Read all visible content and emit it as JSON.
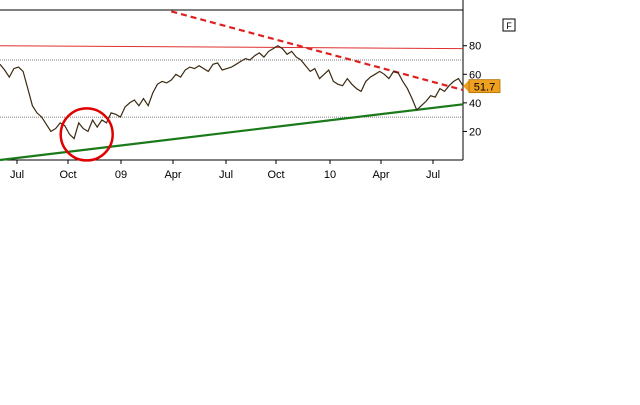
{
  "chart_data": {
    "type": "line",
    "title": "",
    "xlabel": "",
    "ylabel": "",
    "ylim": [
      0,
      105
    ],
    "grid": "dotted horizontal lines at 30 and 70",
    "x_tick_labels": [
      "Jul",
      "Oct",
      "09",
      "Apr",
      "Jul",
      "Oct",
      "10",
      "Apr",
      "Jul"
    ],
    "y_tick_labels": [
      "20",
      "40",
      "60",
      "80"
    ],
    "y_ticks": [
      20,
      40,
      60,
      80
    ],
    "overbought_level": 70,
    "oversold_level": 30,
    "last_value_label": "51.7",
    "last_value": 51.7,
    "button_label": "F",
    "series": [
      {
        "color": "#3a2a10",
        "values": [
          67,
          63,
          58,
          64,
          65,
          62,
          50,
          38,
          33,
          30,
          25,
          20,
          22,
          26,
          24,
          18,
          15,
          26,
          22,
          20,
          28,
          23,
          28,
          26,
          33,
          32,
          30,
          37,
          40,
          42,
          38,
          43,
          38,
          47,
          53,
          55,
          54,
          56,
          60,
          58,
          63,
          65,
          64,
          66,
          64,
          62,
          67,
          68,
          63,
          64,
          65,
          67,
          69,
          71,
          70,
          73,
          75,
          72,
          76,
          78,
          80,
          78,
          74,
          76,
          72,
          70,
          66,
          62,
          64,
          57,
          60,
          63,
          55,
          53,
          52,
          57,
          53,
          50,
          48,
          55,
          58,
          60,
          62,
          60,
          57,
          62,
          61,
          55,
          50,
          43,
          35,
          38,
          41,
          45,
          44,
          50,
          48,
          52,
          55,
          57,
          52
        ]
      }
    ],
    "trendlines": [
      {
        "style": "dashed",
        "color": "#e02020",
        "from": {
          "x_index": 37,
          "y": 104
        },
        "to": {
          "x_index": 100,
          "y": 49
        }
      },
      {
        "style": "solid",
        "color": "#1a7a1a",
        "from": {
          "x_index": 0,
          "y": 0
        },
        "to": {
          "x_index": 100,
          "y": 39
        }
      },
      {
        "style": "solid",
        "color": "#e03030",
        "from": {
          "x_index": 0,
          "y": 80
        },
        "to": {
          "x_index": 100,
          "y": 78
        }
      }
    ],
    "annotations": [
      {
        "type": "circle",
        "color": "#e00000",
        "x_index": 17,
        "y": 20
      }
    ]
  }
}
